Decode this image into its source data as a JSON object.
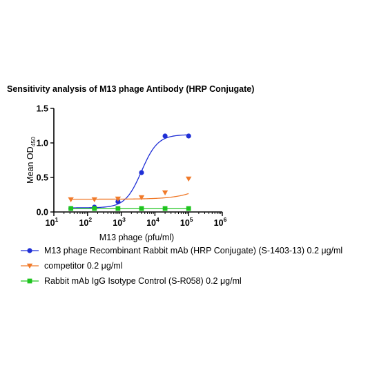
{
  "chart_data": {
    "type": "scatter",
    "title": "Sensitivity analysis of M13 phage Antibody (HRP Conjugate)",
    "xlabel": "M13 phage (pfu/ml)",
    "ylabel_main": "Mean OD",
    "ylabel_sub": "450",
    "xscale": "log",
    "xlim": [
      10,
      1000000
    ],
    "ylim": [
      0,
      1.5
    ],
    "x_ticks": [
      {
        "value": 10,
        "base": "10",
        "exp": "1"
      },
      {
        "value": 100,
        "base": "10",
        "exp": "2"
      },
      {
        "value": 1000,
        "base": "10",
        "exp": "3"
      },
      {
        "value": 10000,
        "base": "10",
        "exp": "4"
      },
      {
        "value": 100000,
        "base": "10",
        "exp": "5"
      },
      {
        "value": 1000000,
        "base": "10",
        "exp": "6"
      }
    ],
    "y_ticks": [
      {
        "value": 0,
        "label": "0.0"
      },
      {
        "value": 0.5,
        "label": "0.5"
      },
      {
        "value": 1.0,
        "label": "1.0"
      },
      {
        "value": 1.5,
        "label": "1.5"
      }
    ],
    "grid": false,
    "legend_position": "bottom",
    "series": [
      {
        "name": "M13 phage Recombinant Rabbit mAb (HRP Conjugate) (S-1403-13) 0.2 μg/ml",
        "color": "#1f2fd6",
        "marker": "circle",
        "x": [
          32,
          160,
          800,
          4000,
          20000,
          100000
        ],
        "y": [
          0.05,
          0.07,
          0.15,
          0.57,
          1.1,
          1.1
        ],
        "fit": {
          "bottom": 0.06,
          "top": 1.12,
          "ec50": 4000,
          "hill": 1.8
        }
      },
      {
        "name": "competitor 0.2 μg/ml",
        "color": "#f07a2a",
        "marker": "triangle-down",
        "x": [
          32,
          160,
          800,
          4000,
          20000,
          100000
        ],
        "y": [
          0.18,
          0.18,
          0.19,
          0.21,
          0.28,
          0.48
        ],
        "fit": {
          "bottom": 0.185,
          "top": 1.2,
          "ec50": 1500000,
          "hill": 0.9
        }
      },
      {
        "name": "Rabbit mAb IgG Isotype Control (S-R058) 0.2 μg/ml",
        "color": "#1fc41f",
        "marker": "square",
        "x": [
          32,
          160,
          800,
          4000,
          20000,
          100000
        ],
        "y": [
          0.05,
          0.05,
          0.05,
          0.05,
          0.05,
          0.05
        ],
        "fit": {
          "bottom": 0.05,
          "top": 0.05,
          "ec50": 1000,
          "hill": 1
        }
      }
    ]
  }
}
